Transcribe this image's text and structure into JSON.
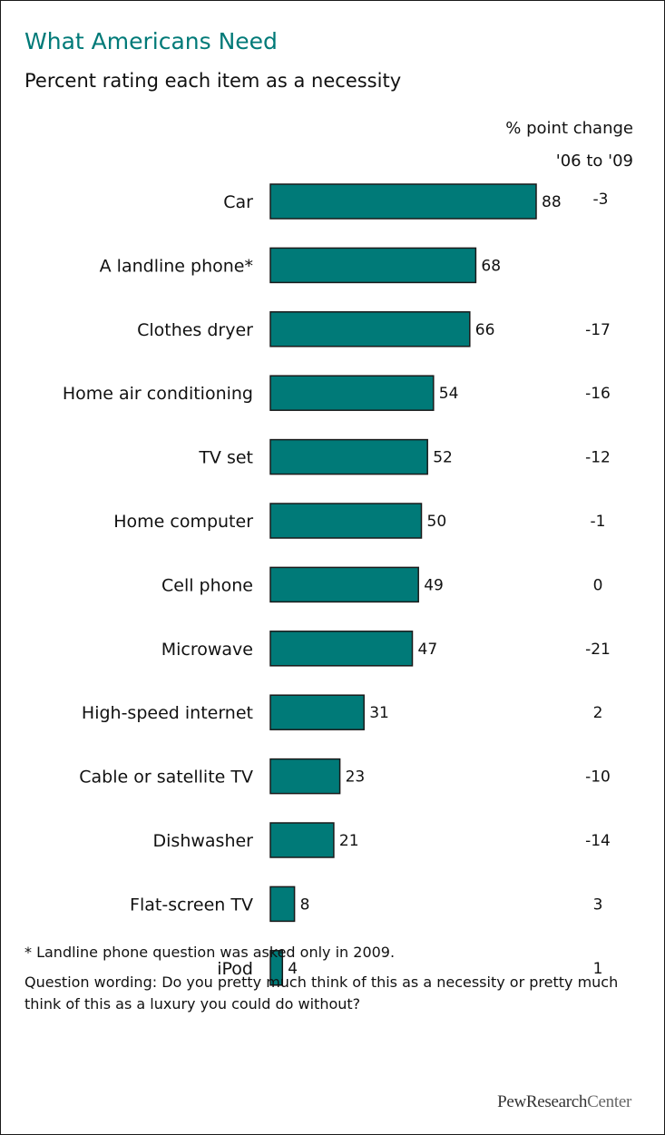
{
  "header": {
    "title": "What Americans Need",
    "subtitle": "Percent rating each item as a necessity",
    "change_header_line1": "% point change",
    "change_header_line2": "'06 to '09"
  },
  "chart_data": {
    "type": "bar",
    "orientation": "horizontal",
    "title": "What Americans Need",
    "subtitle": "Percent rating each item as a necessity",
    "categories": [
      "Car",
      "A landline phone*",
      "Clothes dryer",
      "Home air conditioning",
      "TV set",
      "Home computer",
      "Cell phone",
      "Microwave",
      "High-speed internet",
      "Cable or satellite TV",
      "Dishwasher",
      "Flat-screen TV",
      "iPod"
    ],
    "values": [
      88,
      68,
      66,
      54,
      52,
      50,
      49,
      47,
      31,
      23,
      21,
      8,
      4
    ],
    "change_06_to_09": [
      "-3",
      "",
      "-17",
      "-16",
      "-12",
      "-1",
      "0",
      "-21",
      "2",
      "-10",
      "-14",
      "3",
      "1"
    ],
    "xlim": [
      0,
      100
    ],
    "grid": false,
    "legend": "none",
    "bar_color": "#007a78",
    "bar_border": "#1a1a1a",
    "title_color": "#007a78"
  },
  "footnotes": {
    "note": "* Landline phone question was asked only in 2009.",
    "question_wording": "Question wording: Do you pretty much think of this as a necessity or pretty much think of this as a luxury you could do without?"
  },
  "source": {
    "logo_part1": "PewResearch",
    "logo_part2": "Center"
  }
}
